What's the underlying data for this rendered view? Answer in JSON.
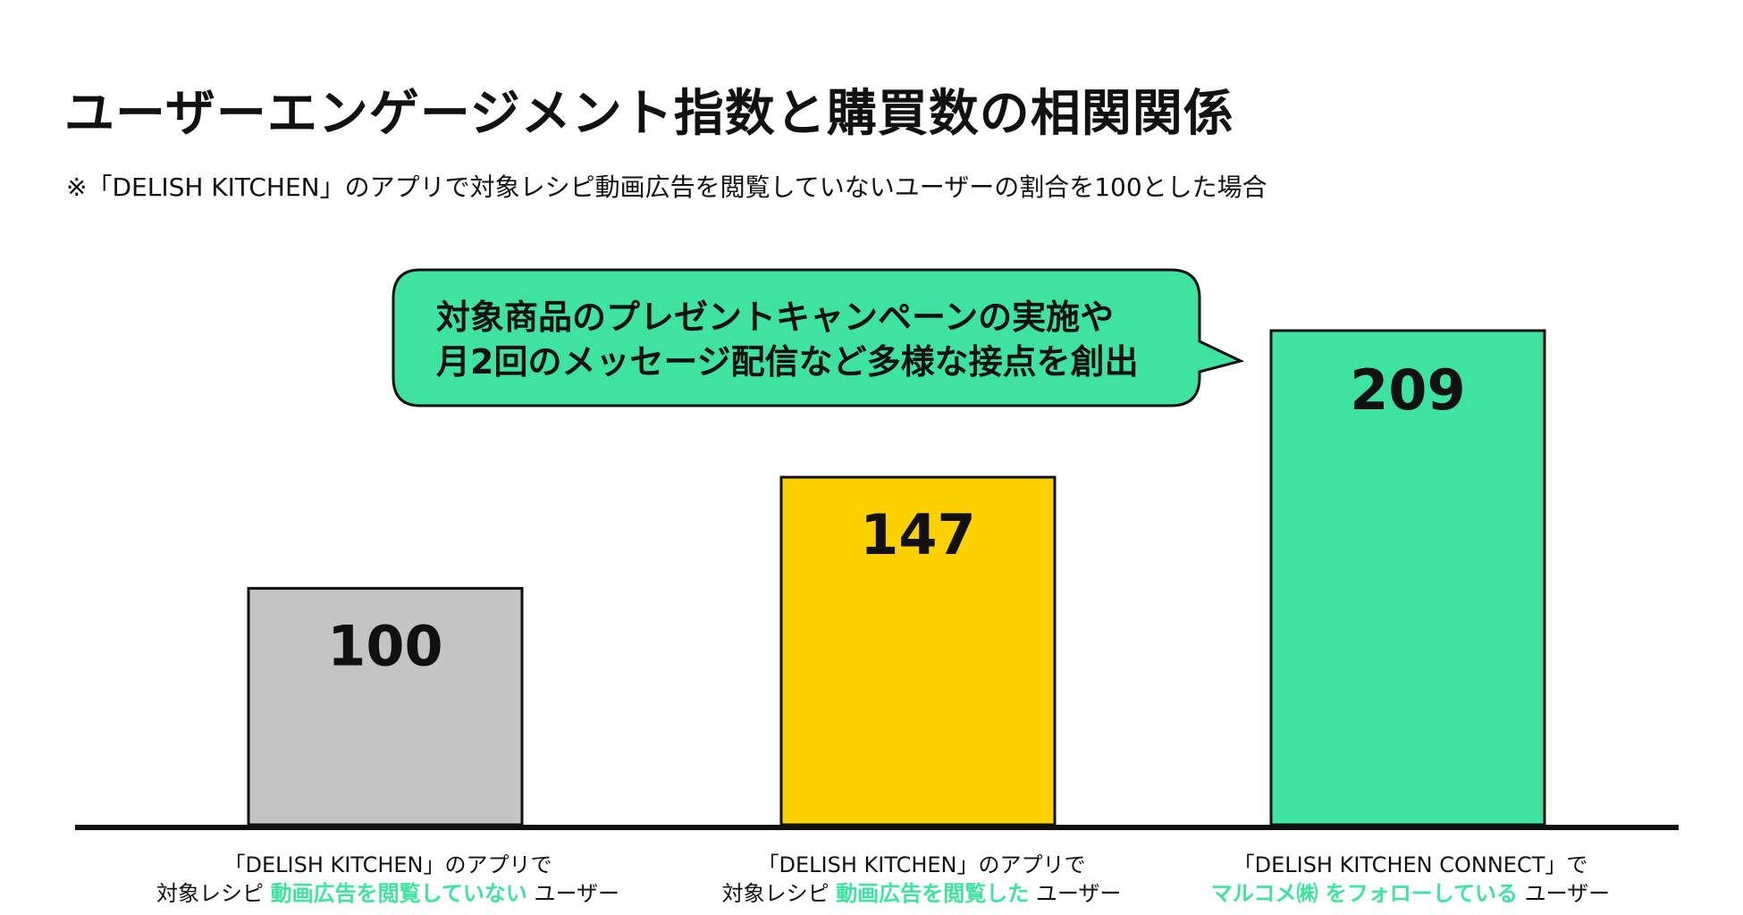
{
  "title": "ユーザーエンゲージメント指数と購買数の相関関係",
  "note": "※「DELISH KITCHEN」のアプリで対象レシピ動画広告を閲覧していないユーザーの割合を100とした場合",
  "callout": {
    "line1": "対象商品のプレゼントキャンペーンの実施や",
    "line2": "月2回のメッセージ配信など多様な接点を創出"
  },
  "colors": {
    "gray": "#c4c4c4",
    "yellow": "#fdd100",
    "green": "#3ee3a0",
    "axis": "#111111"
  },
  "chart_data": {
    "type": "bar",
    "categories": [
      {
        "line1": "「DELISH KITCHEN」のアプリで",
        "pre": "対象レシピ ",
        "highlight": "動画広告を閲覧していない",
        "post": " ユーザー"
      },
      {
        "line1": "「DELISH KITCHEN」のアプリで",
        "pre": "対象レシピ ",
        "highlight": "動画広告を閲覧した",
        "post": " ユーザー"
      },
      {
        "line1": "「DELISH KITCHEN CONNECT」で",
        "pre": "",
        "highlight": "マルコメ㈱ をフォローしている",
        "post": " ユーザー"
      }
    ],
    "values": [
      100,
      147,
      209
    ],
    "labels": [
      "100",
      "147",
      "209"
    ],
    "bar_colors": [
      "#c4c4c4",
      "#fdd100",
      "#3ee3a0"
    ],
    "ylim": [
      0,
      300
    ],
    "grid": false,
    "legend": "none"
  }
}
